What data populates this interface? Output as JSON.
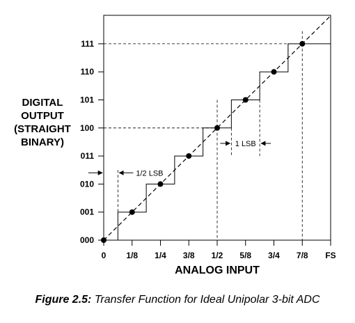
{
  "chart_data": {
    "type": "line",
    "xlabel": "ANALOG INPUT",
    "ylabel_lines": [
      "DIGITAL",
      "OUTPUT",
      "(STRAIGHT",
      "BINARY)"
    ],
    "x_ticks": [
      "0",
      "1/8",
      "1/4",
      "3/8",
      "1/2",
      "5/8",
      "3/4",
      "7/8",
      "FS"
    ],
    "y_ticks": [
      "000",
      "001",
      "010",
      "011",
      "100",
      "101",
      "110",
      "111"
    ],
    "xlim": [
      0,
      1
    ],
    "ylim": [
      0,
      7
    ],
    "ideal_points": {
      "x": [
        0,
        0.125,
        0.25,
        0.375,
        0.5,
        0.625,
        0.75,
        0.875
      ],
      "y": [
        0,
        1,
        2,
        3,
        4,
        5,
        6,
        7
      ]
    },
    "code_transitions": [
      0.0625,
      0.1875,
      0.3125,
      0.4375,
      0.5625,
      0.6875,
      0.8125
    ],
    "annotations": {
      "half_lsb": "1/2 LSB",
      "one_lsb": "1 LSB"
    },
    "grid": false
  },
  "caption": {
    "figure_number": "Figure 2.5:",
    "text": " Transfer Function for Ideal Unipolar 3-bit ADC"
  }
}
